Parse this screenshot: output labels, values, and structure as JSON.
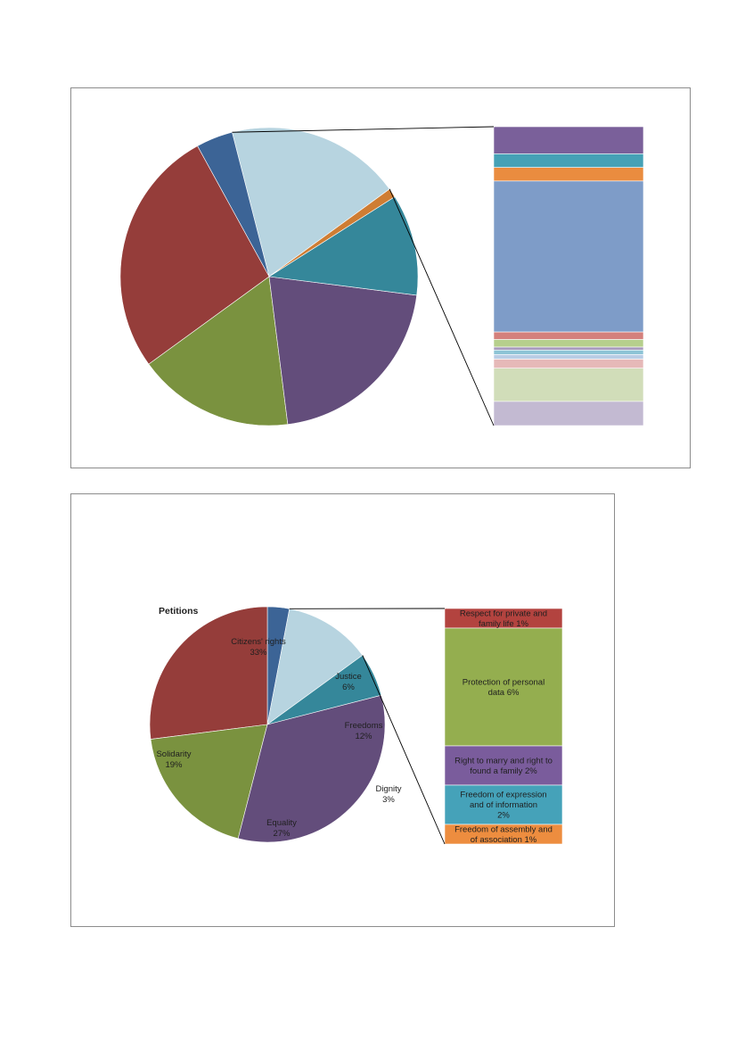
{
  "chart_data": [
    {
      "type": "pie",
      "variant": "bar-of-pie",
      "title": "",
      "slices": [
        {
          "name": "",
          "value": 19,
          "color": "#b7d4e0"
        },
        {
          "name": "",
          "value": 4,
          "color": "#3c6496"
        },
        {
          "name": "",
          "value": 27,
          "color": "#953d3a"
        },
        {
          "name": "",
          "value": 17,
          "color": "#7a923f"
        },
        {
          "name": "",
          "value": 21,
          "color": "#634d7b"
        },
        {
          "name": "",
          "value": 11,
          "color": "#35879a"
        },
        {
          "name": "",
          "value": 1,
          "color": "#cf7d33"
        }
      ],
      "exploded_slice": 0,
      "bar_segments": [
        {
          "name": "",
          "value": 9,
          "color": "#7a609a"
        },
        {
          "name": "",
          "value": 4.5,
          "color": "#45a1b6"
        },
        {
          "name": "",
          "value": 4.5,
          "color": "#ea8c3f"
        },
        {
          "name": "",
          "value": 50,
          "color": "#7e9cc8"
        },
        {
          "name": "",
          "value": 2.5,
          "color": "#d4807c"
        },
        {
          "name": "",
          "value": 2.5,
          "color": "#b6cf8c"
        },
        {
          "name": "",
          "value": 1,
          "color": "#a89bbd"
        },
        {
          "name": "",
          "value": 1.5,
          "color": "#8dc4d6"
        },
        {
          "name": "",
          "value": 1.5,
          "color": "#b9cde5"
        },
        {
          "name": "",
          "value": 3,
          "color": "#e6b9b8"
        },
        {
          "name": "",
          "value": 11,
          "color": "#d1ddb9"
        },
        {
          "name": "",
          "value": 8,
          "color": "#c3bad2"
        }
      ]
    },
    {
      "type": "pie",
      "variant": "bar-of-pie",
      "title": "Petitions",
      "slices": [
        {
          "name": "Freedoms",
          "percent": "12%",
          "value": 12,
          "color": "#b7d4e0"
        },
        {
          "name": "Dignity",
          "percent": "3%",
          "value": 3,
          "color": "#3c6496"
        },
        {
          "name": "Equality",
          "percent": "27%",
          "value": 27,
          "color": "#953d3a"
        },
        {
          "name": "Solidarity",
          "percent": "19%",
          "value": 19,
          "color": "#7a923f"
        },
        {
          "name": "Citizens' rights",
          "percent": "33%",
          "value": 33,
          "color": "#634d7b"
        },
        {
          "name": "Justice",
          "percent": "6%",
          "value": 6,
          "color": "#35879a"
        }
      ],
      "exploded_slice": 0,
      "bar_segments": [
        {
          "name": "Respect for private and family life",
          "percent": "1%",
          "value": 1,
          "color": "#b3433f"
        },
        {
          "name": "Protection of personal data",
          "percent": "6%",
          "value": 6,
          "color": "#94ae4f"
        },
        {
          "name": "Right to marry and right to found a family",
          "percent": "2%",
          "value": 2,
          "color": "#7a5c9c"
        },
        {
          "name": "Freedom of expression and of information",
          "percent": "2%",
          "value": 2,
          "color": "#45a2b9"
        },
        {
          "name": "Freedom of assembly and of association",
          "percent": "1%",
          "value": 1,
          "color": "#ed8d3f"
        }
      ]
    }
  ]
}
